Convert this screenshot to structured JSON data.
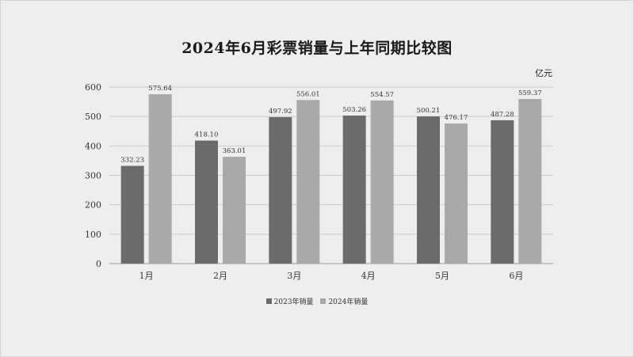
{
  "chart_data": {
    "type": "bar",
    "title": "2024年6月彩票销量与上年同期比较图",
    "unit": "亿元",
    "categories": [
      "1月",
      "2月",
      "3月",
      "4月",
      "5月",
      "6月"
    ],
    "series": [
      {
        "name": "2023年销量",
        "color": "#6b6b6b",
        "values": [
          332.23,
          418.1,
          497.92,
          503.26,
          500.21,
          487.28
        ]
      },
      {
        "name": "2024年销量",
        "color": "#a9a9a9",
        "values": [
          575.64,
          363.01,
          556.01,
          554.57,
          476.17,
          559.37
        ]
      }
    ],
    "ylim": [
      0,
      600
    ],
    "yticks": [
      0,
      100,
      200,
      300,
      400,
      500,
      600
    ],
    "grid": true,
    "legend_position": "bottom"
  }
}
